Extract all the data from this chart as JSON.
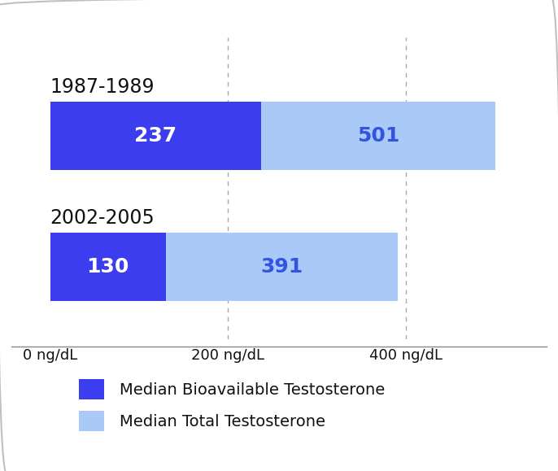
{
  "periods": [
    "1987-1989",
    "2002-2005"
  ],
  "bioavailable": [
    237,
    130
  ],
  "total": [
    501,
    391
  ],
  "color_bio": "#3d3df0",
  "color_total": "#aac8f8",
  "label_bio": "Median Bioavailable Testosterone",
  "label_total": "Median Total Testosterone",
  "xticks": [
    0,
    200,
    400
  ],
  "xtick_labels": [
    "0 ng/dL",
    "200 ng/dL",
    "400 ng/dL"
  ],
  "xlim_max": 540,
  "bar_label_color_bio": "#ffffff",
  "bar_label_color_total": "#3355dd",
  "bar_height": 0.52,
  "background": "#ffffff",
  "border_color": "#c0c0c0",
  "text_color": "#111111",
  "grid_color": "#aaaaaa",
  "period_fontsize": 17,
  "value_fontsize": 18,
  "tick_fontsize": 13,
  "legend_fontsize": 14
}
